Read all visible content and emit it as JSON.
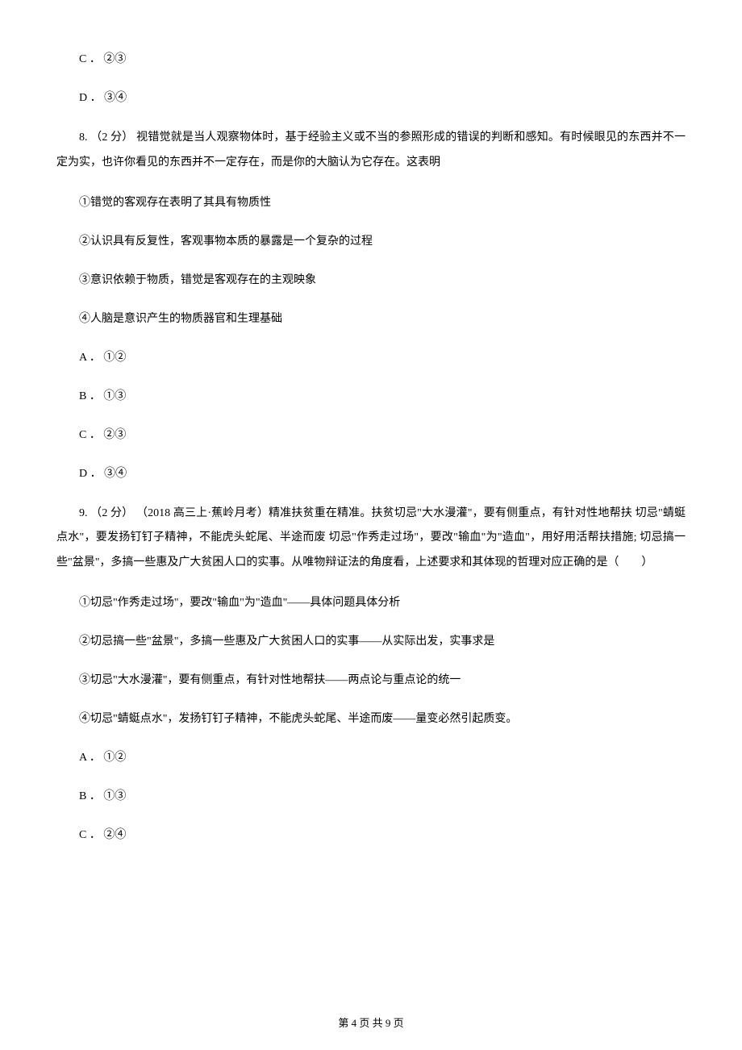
{
  "q7_options": {
    "C": "C ． ②③",
    "D": "D ． ③④"
  },
  "q8": {
    "stem": "8. （2 分） 视错觉就是当人观察物体时，基于经验主义或不当的参照形成的错误的判断和感知。有时候眼见的东西并不一定为实，也许你看见的东西并不一定存在，而是你的大脑认为它存在。这表明",
    "items": {
      "s1": "①错觉的客观存在表明了其具有物质性",
      "s2": "②认识具有反复性，客观事物本质的暴露是一个复杂的过程",
      "s3": "③意识依赖于物质，错觉是客观存在的主观映象",
      "s4": "④人脑是意识产生的物质器官和生理基础"
    },
    "options": {
      "A": "A ． ①②",
      "B": "B ． ①③",
      "C": "C ． ②③",
      "D": "D ． ③④"
    }
  },
  "q9": {
    "stem": "9. （2 分） （2018 高三上·蕉岭月考）精准扶贫重在精准。扶贫切忌\"大水漫灌\"，要有侧重点，有针对性地帮扶 切忌\"蜻蜓点水\"，要发扬钉钉子精神，不能虎头蛇尾、半途而废 切忌\"作秀走过场\"，要改\"输血\"为\"造血\"，用好用活帮扶措施; 切忌搞一些\"盆景\"，多搞一些惠及广大贫困人口的实事。从唯物辩证法的角度看，上述要求和其体现的哲理对应正确的是（　　）",
    "items": {
      "s1": "①切忌\"作秀走过场\"，要改\"输血\"为\"造血\"——具体问题具体分析",
      "s2": "②切忌搞一些\"盆景\"，多搞一些惠及广大贫困人口的实事——从实际出发，实事求是",
      "s3": "③切忌\"大水漫灌\"，要有侧重点，有针对性地帮扶——两点论与重点论的统一",
      "s4": "④切忌\"蜻蜓点水\"，发扬钉钉子精神，不能虎头蛇尾、半途而废——量变必然引起质变。"
    },
    "options": {
      "A": "A ． ①②",
      "B": "B ． ①③",
      "C": "C ． ②④"
    }
  },
  "footer": "第 4 页 共 9 页"
}
